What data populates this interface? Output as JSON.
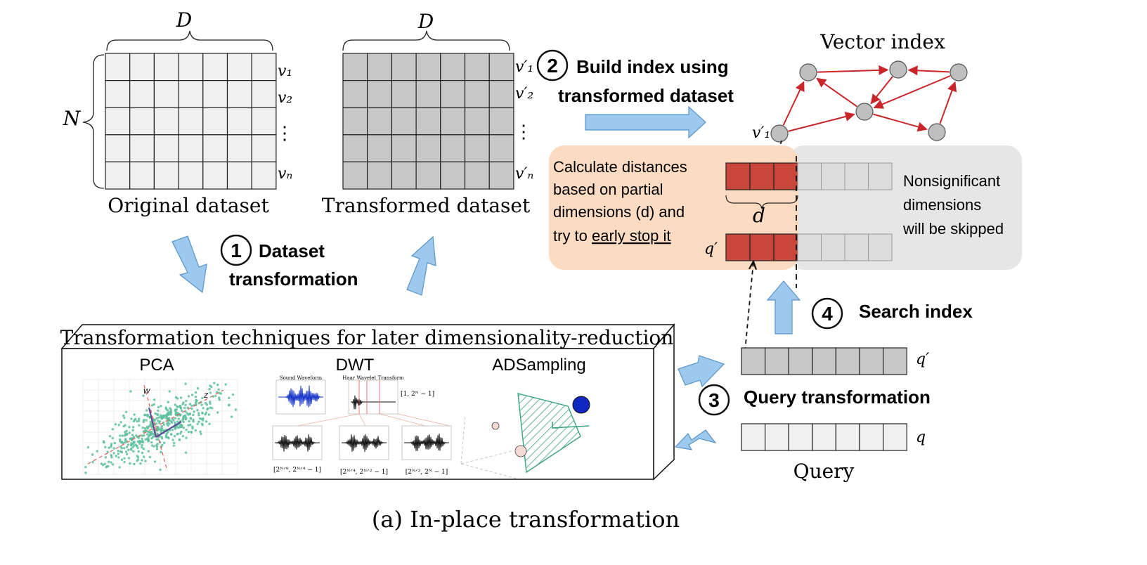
{
  "original": {
    "dim_label": "D",
    "rows_label": "N",
    "row_labels": [
      "v₁",
      "v₂",
      "⋮",
      "vₙ"
    ],
    "caption": "Original dataset"
  },
  "transformed": {
    "dim_label": "D",
    "row_labels": [
      "v′₁",
      "v′₂",
      "⋮",
      "v′ₙ"
    ],
    "caption": "Transformed dataset"
  },
  "steps": [
    {
      "number": "1",
      "label_lines": [
        "Dataset",
        "transformation"
      ]
    },
    {
      "number": "2",
      "label_lines": [
        "Build index using",
        "transformed dataset"
      ]
    },
    {
      "number": "3",
      "label_lines": [
        "Query transformation"
      ]
    },
    {
      "number": "4",
      "label_lines": [
        "Search index"
      ]
    }
  ],
  "vector_index": {
    "title": "Vector index",
    "start_node_label": "v′₁"
  },
  "distance_box": {
    "lines": [
      "Calculate distances",
      "based on partial",
      "dimensions (d) and"
    ],
    "line4_prefix": "try to ",
    "line4_underlined": "early stop it",
    "partial_dim_label": "d",
    "query_label": "q′"
  },
  "skip_box": {
    "lines": [
      "Nonsignificant",
      "dimensions",
      "will be skipped"
    ]
  },
  "techniques": {
    "title": "Transformation techniques for later dimensionality-reduction",
    "methods": [
      "PCA",
      "DWT",
      "ADSampling"
    ],
    "pca_axis_labels": [
      "w",
      "z"
    ],
    "dwt_panel_titles": [
      "Sound Waveform",
      "Haar Wavelet Transform"
    ],
    "dwt_range_labels": [
      "[1, 2ᴺ − 1]",
      "[2ᴺᐟ⁸, 2ᴺᐟ⁴ − 1]",
      "[2ᴺᐟ⁴, 2ᴺᐟ² − 1]",
      "[2ᴺᐟ², 2ᴺ − 1]"
    ]
  },
  "query": {
    "transformed_label": "q′",
    "original_label": "q",
    "caption": "Query"
  },
  "figure_caption": "(a) In-place transformation",
  "colors": {
    "cell_light": "#f0f0f0",
    "cell_gray": "#c8c8c8",
    "red_cell": "#c9473a",
    "orange_bg": "#fbdcc3",
    "gray_bg": "#e6e6e6",
    "arrow_blue": "#9dc9ef",
    "arrow_blue_stroke": "#5a95c8",
    "edge_red": "#c8262b",
    "node_gray": "#bfbfbf",
    "pca_teal": "#5cbf9c",
    "dwt_blue": "#1432c8"
  }
}
